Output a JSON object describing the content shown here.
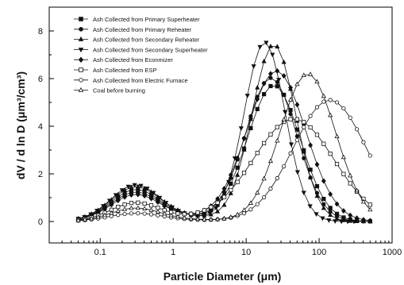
{
  "chart_data": {
    "type": "line",
    "title": "",
    "xlabel": "Particle Diameter (μm)",
    "ylabel": "dV / d ln D (μm³/cm³)",
    "xscale": "log",
    "xlim": [
      0.02,
      1000
    ],
    "ylim": [
      -0.9,
      9
    ],
    "xticks": [
      {
        "value": 0.1,
        "label": "0.1"
      },
      {
        "value": 1,
        "label": "1"
      },
      {
        "value": 10,
        "label": "10"
      },
      {
        "value": 100,
        "label": "100"
      },
      {
        "value": 1000,
        "label": "1000"
      }
    ],
    "yticks": [
      {
        "value": 0,
        "label": "0"
      },
      {
        "value": 2,
        "label": "2"
      },
      {
        "value": 4,
        "label": "4"
      },
      {
        "value": 6,
        "label": "6"
      },
      {
        "value": 8,
        "label": "8"
      }
    ],
    "legend_position": "top-left",
    "series": [
      {
        "name": "Ash Collected from Primary Superheater",
        "marker": "square-filled",
        "peak1": {
          "x": 0.3,
          "y": 1.1,
          "w": 0.33
        },
        "peak2": {
          "x": 24,
          "y": 5.7,
          "w": 0.36
        },
        "base": 0.3,
        "xmax": 500
      },
      {
        "name": "Ash Collected from Primary Reheater",
        "marker": "circle-filled",
        "peak1": {
          "x": 0.3,
          "y": 1.2,
          "w": 0.33
        },
        "peak2": {
          "x": 22,
          "y": 6.0,
          "w": 0.35
        },
        "base": 0.32,
        "xmax": 500
      },
      {
        "name": "Ash Collected from Secondary Reheater",
        "marker": "triangle-up-filled",
        "peak1": {
          "x": 0.3,
          "y": 1.3,
          "w": 0.33
        },
        "peak2": {
          "x": 24,
          "y": 7.4,
          "w": 0.3
        },
        "base": 0.35,
        "xmax": 500
      },
      {
        "name": "Ash Collected from Secondary Superheater",
        "marker": "triangle-down-filled",
        "peak1": {
          "x": 0.3,
          "y": 1.4,
          "w": 0.33
        },
        "peak2": {
          "x": 18,
          "y": 7.5,
          "w": 0.28
        },
        "base": 0.3,
        "xmax": 300
      },
      {
        "name": "Ash Collected from Econmizer",
        "marker": "diamond-filled",
        "peak1": {
          "x": 0.3,
          "y": 1.0,
          "w": 0.33
        },
        "peak2": {
          "x": 26,
          "y": 6.3,
          "w": 0.4
        },
        "base": 0.3,
        "xmax": 500
      },
      {
        "name": "Ash Collected from ESP",
        "marker": "square-open",
        "peak1": {
          "x": 0.3,
          "y": 0.7,
          "w": 0.33
        },
        "peak2": {
          "x": 45,
          "y": 4.3,
          "w": 0.55
        },
        "base": 0.2,
        "xmax": 500
      },
      {
        "name": "Ash Collected from Electric Furnace",
        "marker": "circle-open",
        "peak1": {
          "x": 0.3,
          "y": 0.3,
          "w": 0.35
        },
        "peak2": {
          "x": 140,
          "y": 5.1,
          "w": 0.5
        },
        "base": 0.1,
        "xmax": 500
      },
      {
        "name": "Coal before burning",
        "marker": "triangle-up-open",
        "peak1": {
          "x": 0.3,
          "y": 0.5,
          "w": 0.33
        },
        "peak2": {
          "x": 70,
          "y": 6.2,
          "w": 0.38
        },
        "base": 0.15,
        "xmax": 500
      }
    ]
  }
}
